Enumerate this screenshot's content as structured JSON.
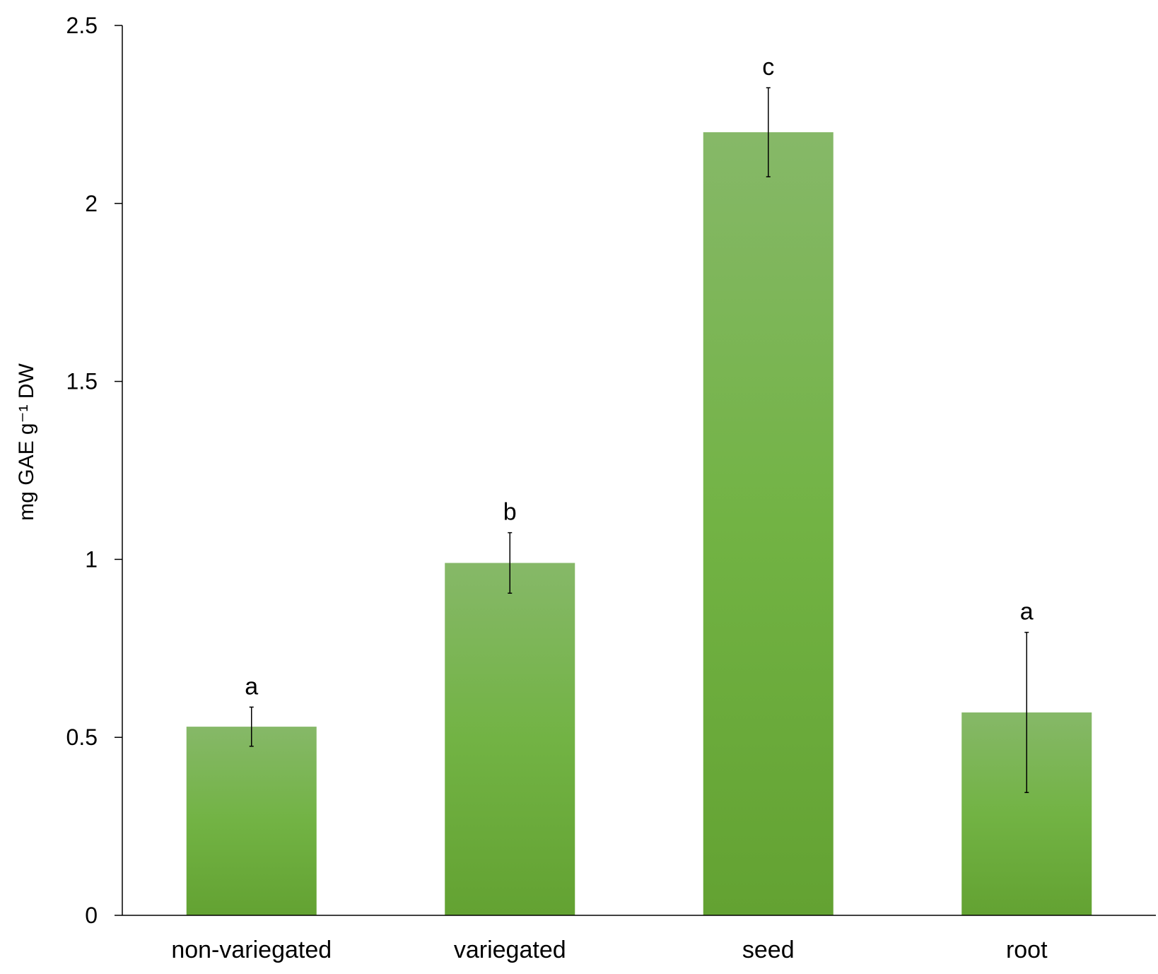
{
  "chart_data": {
    "type": "bar",
    "title": "",
    "ylabel": "mg GAE g⁻¹ DW",
    "xlabel": "",
    "ylim": [
      0,
      2.5
    ],
    "yticks": [
      "0",
      "0.5",
      "1",
      "1.5",
      "2",
      "2.5"
    ],
    "categories": [
      "non-variegated",
      "variegated",
      "seed",
      "root"
    ],
    "values": [
      0.53,
      0.99,
      2.2,
      0.57
    ],
    "errors": [
      0.055,
      0.085,
      0.125,
      0.225
    ],
    "significance_labels": [
      "a",
      "b",
      "c",
      "a"
    ],
    "grid": false,
    "legend": "none"
  },
  "colors": {
    "bar_top": "#86b868",
    "bar_mid": "#72b344",
    "bar_bottom": "#63a232",
    "axis": "#000000"
  }
}
